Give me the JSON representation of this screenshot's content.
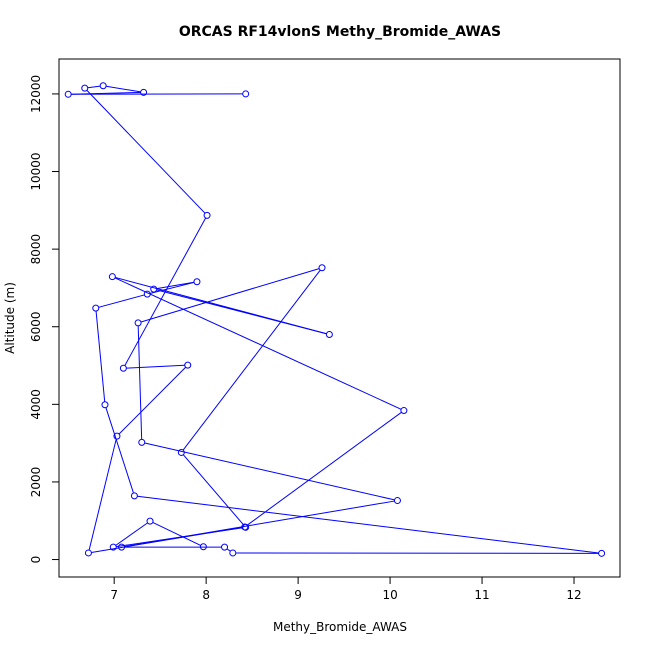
{
  "chart_data": {
    "type": "line",
    "title": "ORCAS RF14vlonS Methy_Bromide_AWAS",
    "xlabel": "Methy_Bromide_AWAS",
    "ylabel": "Altitude (m)",
    "xlim": [
      6.4,
      12.5
    ],
    "ylim": [
      -450,
      12900
    ],
    "xticks": [
      7,
      8,
      9,
      10,
      11,
      12
    ],
    "yticks": [
      0,
      2000,
      4000,
      6000,
      8000,
      10000,
      12000
    ],
    "grid": false,
    "legend": "none",
    "line_color": "#0000ff",
    "marker": "open-circle",
    "series": [
      {
        "points": [
          [
            8.43,
            12000
          ],
          [
            6.5,
            11990
          ],
          [
            7.32,
            12040
          ],
          [
            6.88,
            12210
          ],
          [
            6.68,
            12150
          ],
          [
            8.01,
            8870
          ],
          [
            7.1,
            4930
          ],
          [
            7.8,
            5010
          ],
          [
            7.03,
            3180
          ],
          [
            6.72,
            170
          ],
          [
            8.42,
            840
          ],
          [
            10.15,
            3840
          ],
          [
            6.98,
            7290
          ],
          [
            9.34,
            5800
          ],
          [
            7.43,
            6970
          ],
          [
            7.9,
            7160
          ],
          [
            7.36,
            6840
          ],
          [
            6.8,
            6480
          ],
          [
            6.9,
            3990
          ],
          [
            7.22,
            1640
          ],
          [
            12.3,
            160
          ],
          [
            8.29,
            170
          ],
          [
            8.2,
            320
          ],
          [
            7.08,
            320
          ],
          [
            10.08,
            1520
          ],
          [
            7.3,
            3020
          ],
          [
            7.26,
            6100
          ],
          [
            9.26,
            7520
          ],
          [
            7.73,
            2760
          ],
          [
            8.43,
            830
          ],
          [
            6.99,
            320
          ],
          [
            7.39,
            990
          ],
          [
            7.97,
            330
          ]
        ]
      }
    ]
  }
}
